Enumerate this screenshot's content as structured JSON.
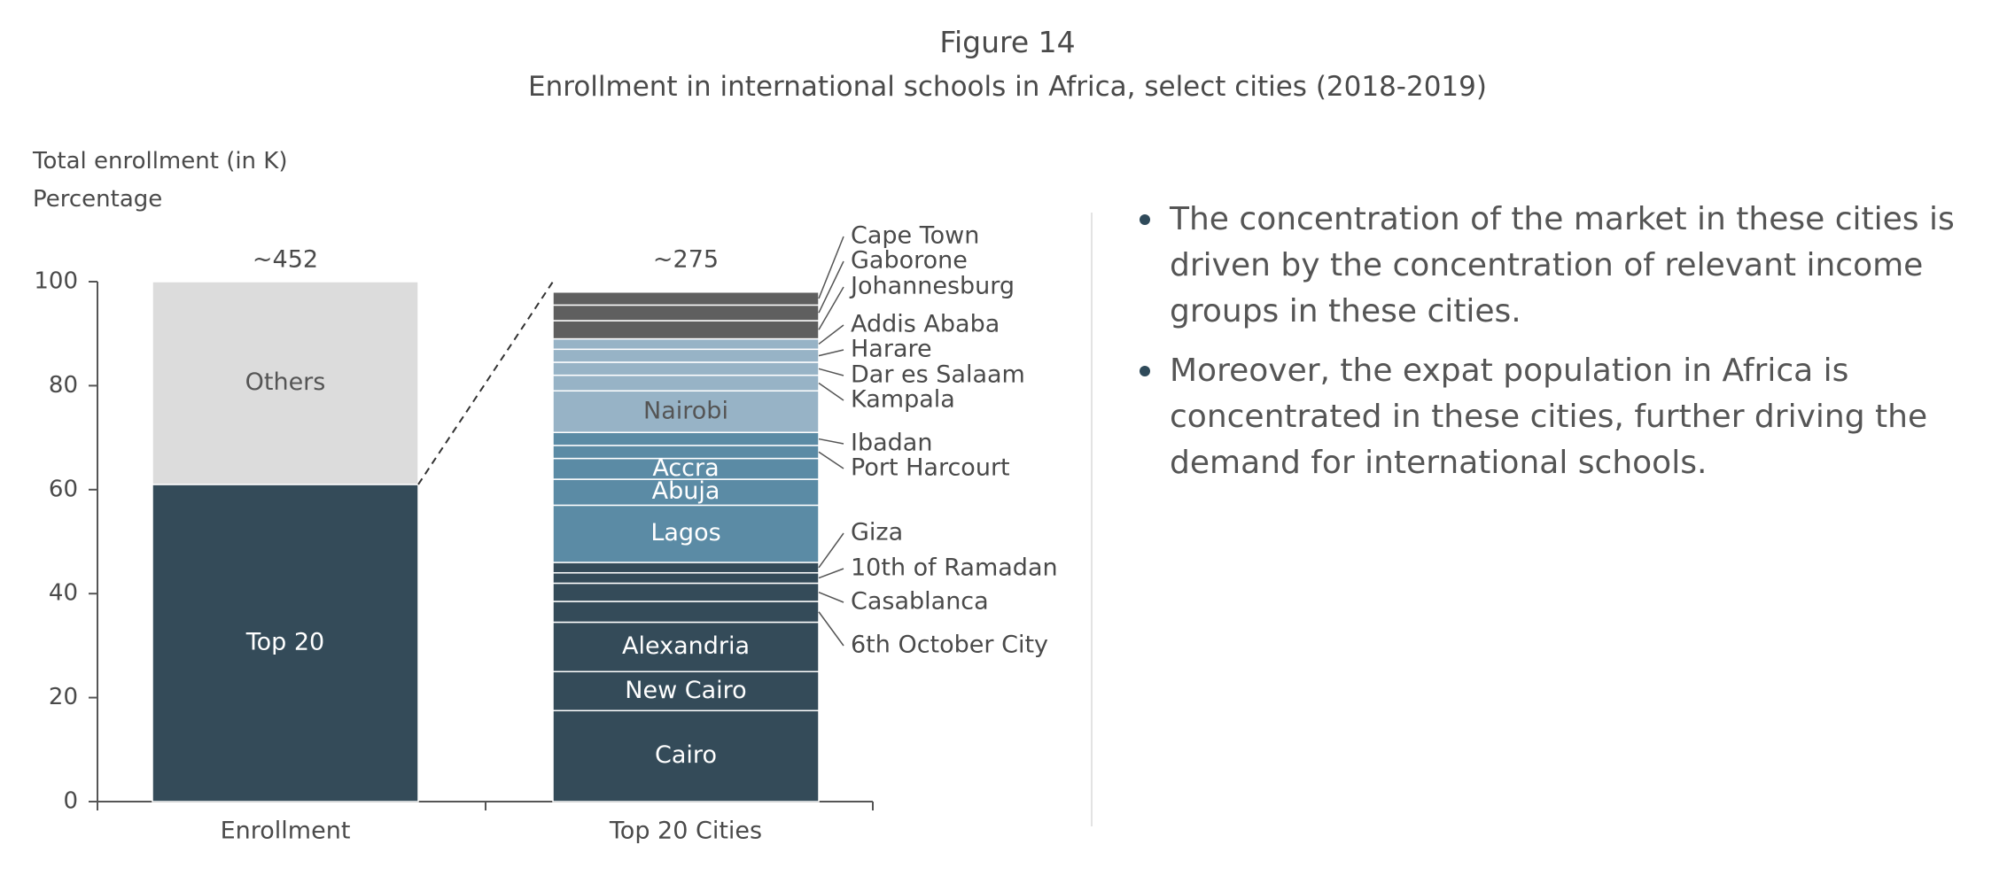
{
  "figure": {
    "number": "Figure 14",
    "title": "Enrollment in international schools in Africa, select cities (2018-2019)"
  },
  "axis_labels": {
    "line1": "Total enrollment (in K)",
    "line2": "Percentage"
  },
  "bullets": [
    "The concentration of the market in these cities is driven by the concentration of relevant income groups in these cities.",
    "Moreover, the expat population in Africa is concentrated in these cities, further driving the demand for international schools."
  ],
  "chart_data": {
    "type": "bar",
    "stacked": true,
    "ylim": [
      0,
      100
    ],
    "yticks": [
      0,
      20,
      40,
      60,
      80,
      100
    ],
    "categories": [
      "Enrollment",
      "Top 20 Cities"
    ],
    "totals": [
      "~452",
      "~275"
    ],
    "bars": [
      {
        "category": "Enrollment",
        "segments": [
          {
            "name": "Top 20",
            "value": 61,
            "color": "#344b59",
            "label_color": "#ffffff",
            "labeled": true
          },
          {
            "name": "Others",
            "value": 39,
            "color": "#dcdcdc",
            "label_color": "#555555",
            "labeled": true
          }
        ]
      },
      {
        "category": "Top 20 Cities",
        "segments": [
          {
            "name": "Cairo",
            "value": 17.5,
            "color": "#344b59",
            "label_color": "#ffffff",
            "labeled": true
          },
          {
            "name": "New Cairo",
            "value": 7.5,
            "color": "#344b59",
            "label_color": "#ffffff",
            "labeled": true
          },
          {
            "name": "Alexandria",
            "value": 9.5,
            "color": "#344b59",
            "label_color": "#ffffff",
            "labeled": true
          },
          {
            "name": "6th October City",
            "value": 4,
            "color": "#344b59",
            "labeled": false
          },
          {
            "name": "Casablanca",
            "value": 3.5,
            "color": "#344b59",
            "labeled": false
          },
          {
            "name": "10th of Ramadan",
            "value": 2,
            "color": "#344b59",
            "labeled": false
          },
          {
            "name": "Giza",
            "value": 2,
            "color": "#344b59",
            "labeled": false
          },
          {
            "name": "Lagos",
            "value": 11,
            "color": "#5b8ba5",
            "label_color": "#ffffff",
            "labeled": true
          },
          {
            "name": "Abuja",
            "value": 5,
            "color": "#5b8ba5",
            "label_color": "#ffffff",
            "labeled": true
          },
          {
            "name": "Accra",
            "value": 4,
            "color": "#5b8ba5",
            "label_color": "#ffffff",
            "labeled": true
          },
          {
            "name": "Port Harcourt",
            "value": 2.5,
            "color": "#5b8ba5",
            "labeled": false
          },
          {
            "name": "Ibadan",
            "value": 2.5,
            "color": "#5b8ba5",
            "labeled": false
          },
          {
            "name": "Nairobi",
            "value": 8,
            "color": "#97b3c6",
            "label_color": "#555555",
            "labeled": true
          },
          {
            "name": "Kampala",
            "value": 3,
            "color": "#97b3c6",
            "labeled": false
          },
          {
            "name": "Dar es Salaam",
            "value": 2.5,
            "color": "#97b3c6",
            "labeled": false
          },
          {
            "name": "Harare",
            "value": 2.5,
            "color": "#97b3c6",
            "labeled": false
          },
          {
            "name": "Addis Ababa",
            "value": 2,
            "color": "#97b3c6",
            "labeled": false
          },
          {
            "name": "Johannesburg",
            "value": 3.5,
            "color": "#5f5f5f",
            "labeled": false
          },
          {
            "name": "Gaborone",
            "value": 3,
            "color": "#5f5f5f",
            "labeled": false
          },
          {
            "name": "Cape Town",
            "value": 2.5,
            "color": "#5f5f5f",
            "labeled": false
          }
        ]
      }
    ],
    "callout_labels": [
      "Cape Town",
      "Gaborone",
      "Johannesburg",
      "Addis Ababa",
      "Harare",
      "Dar es Salaam",
      "Kampala",
      "Ibadan",
      "Port Harcourt",
      "Giza",
      "10th of Ramadan",
      "Casablanca",
      "6th October City"
    ],
    "colors": {
      "axis": "#555555",
      "text": "#4a4a4a",
      "divider": "#e3e3e3"
    }
  }
}
